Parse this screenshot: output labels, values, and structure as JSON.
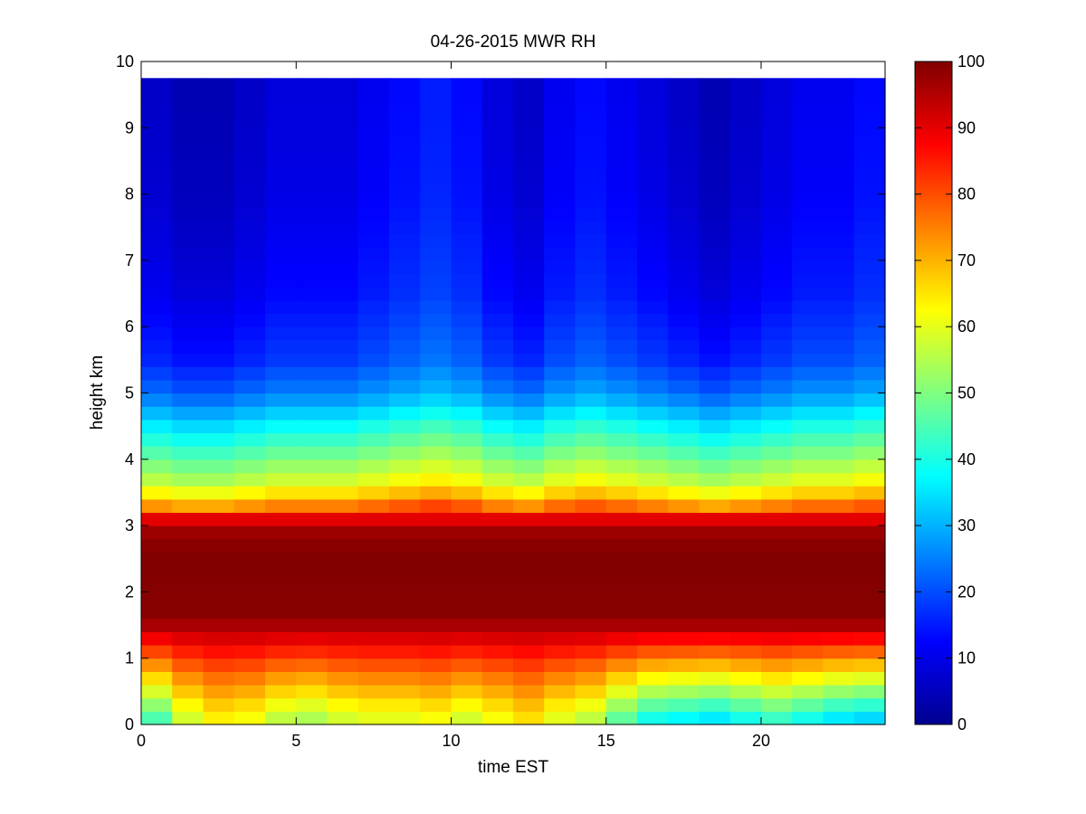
{
  "chart_data": {
    "type": "heatmap",
    "title": "04-26-2015 MWR RH",
    "xlabel": "time EST",
    "ylabel": "height km",
    "xlim": [
      0,
      24
    ],
    "ylim": [
      0,
      10
    ],
    "x_ticks": [
      "0",
      "5",
      "10",
      "15",
      "20"
    ],
    "y_ticks": [
      "0",
      "1",
      "2",
      "3",
      "4",
      "5",
      "6",
      "7",
      "8",
      "9",
      "10"
    ],
    "colorbar": {
      "colormap": "jet",
      "range": [
        0,
        100
      ],
      "ticks": [
        "0",
        "10",
        "20",
        "30",
        "40",
        "50",
        "60",
        "70",
        "80",
        "90",
        "100"
      ]
    },
    "x": [
      0,
      1,
      2,
      3,
      4,
      5,
      6,
      7,
      8,
      9,
      10,
      11,
      12,
      13,
      14,
      15,
      16,
      17,
      18,
      19,
      20,
      21,
      22,
      23
    ],
    "heights": [
      0.1,
      0.3,
      0.5,
      0.7,
      0.9,
      1.1,
      1.3,
      1.5,
      1.7,
      1.9,
      2.1,
      2.3,
      2.5,
      2.7,
      2.9,
      3.1,
      3.3,
      3.5,
      3.7,
      3.9,
      4.1,
      4.3,
      4.5,
      4.7,
      4.9,
      5.1,
      5.3,
      5.5,
      5.7,
      5.9,
      6.1,
      6.3,
      6.5,
      6.7,
      6.9,
      7.1,
      7.3,
      7.5,
      7.7,
      7.9,
      8.1,
      8.3,
      8.5,
      8.7,
      8.9,
      9.1,
      9.3,
      9.5
    ],
    "top_height": 9.75,
    "profiles": {
      "base": [
        [
          0,
          50
        ],
        [
          0.3,
          58
        ],
        [
          0.7,
          70
        ],
        [
          1.1,
          83
        ],
        [
          1.4,
          93
        ],
        [
          1.6,
          99
        ],
        [
          2.6,
          100
        ],
        [
          2.9,
          97
        ],
        [
          3.1,
          90
        ],
        [
          3.3,
          75
        ],
        [
          3.6,
          60
        ],
        [
          4.0,
          50
        ],
        [
          4.5,
          38
        ],
        [
          5.0,
          25
        ],
        [
          5.5,
          18
        ],
        [
          6.5,
          13
        ],
        [
          8.0,
          10
        ],
        [
          9.75,
          9
        ]
      ],
      "hour_offsets": [
        -8,
        6,
        12,
        10,
        4,
        2,
        6,
        8,
        8,
        10,
        6,
        10,
        14,
        8,
        4,
        -6,
        -14,
        -16,
        -18,
        -14,
        -10,
        -14,
        -18,
        -20
      ],
      "upper_offsets": [
        -2,
        -4,
        -4,
        -2,
        0,
        0,
        0,
        2,
        4,
        6,
        4,
        0,
        -2,
        2,
        4,
        2,
        0,
        -2,
        -4,
        -2,
        0,
        2,
        2,
        4
      ]
    }
  }
}
